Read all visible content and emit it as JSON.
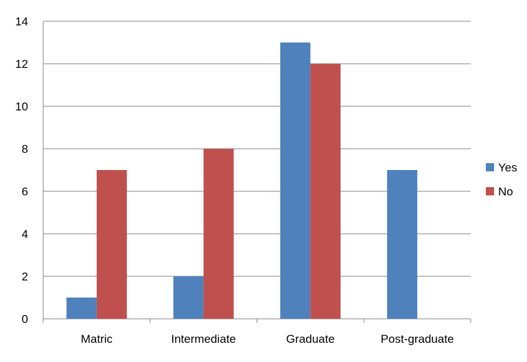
{
  "chart_data": {
    "type": "bar",
    "categories": [
      "Matric",
      "Intermediate",
      "Graduate",
      "Post-graduate"
    ],
    "series": [
      {
        "name": "Yes",
        "color": "#4F81BD",
        "values": [
          1,
          2,
          13,
          7
        ]
      },
      {
        "name": "No",
        "color": "#C0504D",
        "values": [
          7,
          8,
          12,
          0
        ]
      }
    ],
    "title": "",
    "xlabel": "",
    "ylabel": "",
    "ylim": [
      0,
      14
    ],
    "yticks": [
      "0",
      "2",
      "4",
      "6",
      "8",
      "10",
      "12",
      "14"
    ],
    "grid": "horizontal",
    "legend_position": "right"
  }
}
